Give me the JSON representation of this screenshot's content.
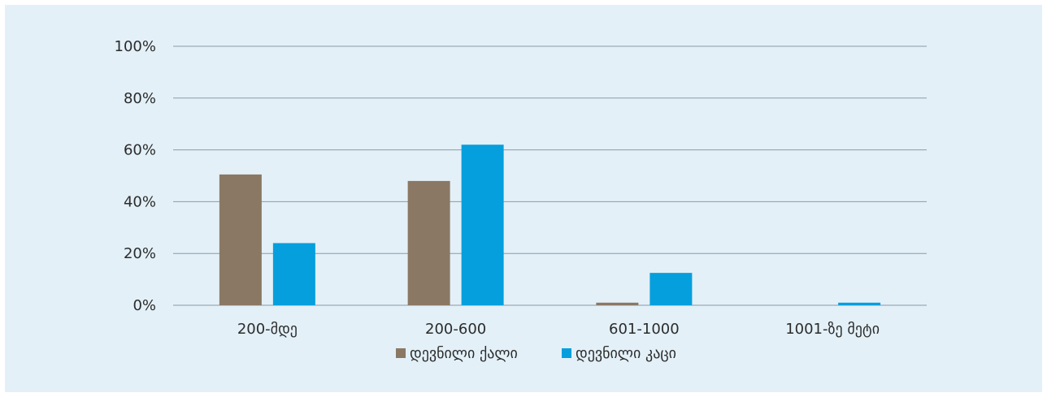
{
  "chart_data": {
    "type": "bar",
    "categories": [
      "200-მდე",
      "200-600",
      "601-1000",
      "1001-ზე მეტი"
    ],
    "series": [
      {
        "name": "დევნილი ქალი",
        "values": [
          50.5,
          48,
          1,
          0
        ],
        "color": "#8b7864"
      },
      {
        "name": "დევნილი კაცი",
        "values": [
          24,
          62,
          12.5,
          1
        ],
        "color": "#069fdd"
      }
    ],
    "ylim": [
      0,
      100
    ],
    "yticks": [
      "0%",
      "20%",
      "40%",
      "60%",
      "80%",
      "100%"
    ],
    "grid": true,
    "legend": "bottom",
    "title": "",
    "xlabel": "",
    "ylabel": ""
  },
  "colors": {
    "background": "#e3f0f8",
    "grid": "#8a9aa6"
  }
}
